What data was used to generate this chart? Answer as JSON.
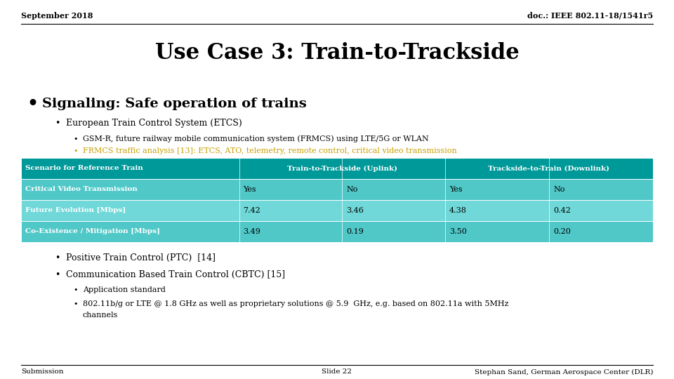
{
  "header_left": "September 2018",
  "header_right": "doc.: IEEE 802.11-18/1541r5",
  "title": "Use Case 3: Train-to-Trackside",
  "bullet1": "Signaling: Safe operation of trains",
  "sub1": "European Train Control System (ETCS)",
  "subsub1": "GSM-R, future railway mobile communication system (FRMCS) using LTE/5G or WLAN",
  "subsub2": "FRMCS traffic analysis [13]: ETCS, ATO, telemetry, remote control, critical video transmission",
  "subsub2_color": "#C8A000",
  "table_header_bg": "#008080",
  "table_row_bg": "#40C0C0",
  "table_rows": [
    [
      "Critical Video Transmission",
      "Yes",
      "No",
      "Yes",
      "No"
    ],
    [
      "Future Evolution [Mbps]",
      "7.42",
      "3.46",
      "4.38",
      "0.42"
    ],
    [
      "Co-Existence / Mitigation [Mbps]",
      "3.49",
      "0.19",
      "3.50",
      "0.20"
    ]
  ],
  "bullet2a": "Positive Train Control (PTC)  [14]",
  "bullet2b": "Communication Based Train Control (CBTC) [15]",
  "bullet3a": "Application standard",
  "bullet3b": "802.11b/g or LTE @ 1.8 GHz as well as proprietary solutions @ 5.9  GHz, e.g. based on 802.11a with 5MHz",
  "bullet3b2": "channels",
  "footer_left": "Submission",
  "footer_center": "Slide 22",
  "footer_right": "Stephan Sand, German Aerospace Center (DLR)",
  "bg_color": "#FFFFFF",
  "text_color": "#000000"
}
